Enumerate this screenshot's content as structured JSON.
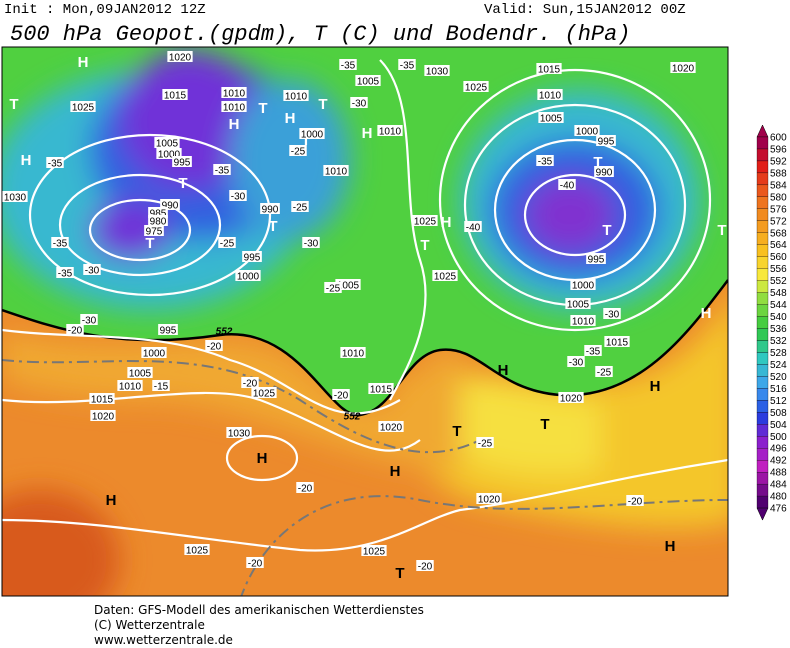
{
  "header": {
    "init": "Init : Mon,09JAN2012 12Z",
    "valid": "Valid: Sun,15JAN2012 00Z",
    "title": "500 hPa Geopot.(gpdm), T (C) und Bodendr. (hPa)"
  },
  "colorbar": {
    "labels": [
      600,
      596,
      592,
      588,
      584,
      580,
      576,
      572,
      568,
      564,
      560,
      556,
      552,
      548,
      544,
      540,
      536,
      532,
      528,
      524,
      520,
      516,
      512,
      508,
      504,
      500,
      496,
      492,
      488,
      484,
      480,
      476
    ]
  },
  "map": {
    "pressure_centers": [
      "H",
      "T",
      "H",
      "T",
      "T",
      "H",
      "T",
      "H",
      "T",
      "T",
      "H",
      "T",
      "H",
      "T",
      "T",
      "T",
      "T",
      "H",
      "H",
      "H",
      "T",
      "T",
      "H",
      "H",
      "H",
      "H",
      "T"
    ],
    "isobar_labels": [
      "1020",
      "1025",
      "1015",
      "1010",
      "1010",
      "1010",
      "1005",
      "1030",
      "1015",
      "1020",
      "1025",
      "1010",
      "1005",
      "1000",
      "995",
      "990",
      "1000",
      "1010",
      "1010",
      "1005",
      "1000",
      "995",
      "990",
      "985",
      "980",
      "975",
      "995",
      "990",
      "1030",
      "1000",
      "1005",
      "1025",
      "1025",
      "995",
      "1000",
      "1005",
      "1010",
      "1015",
      "995",
      "1000",
      "1005",
      "1010",
      "1015",
      "1020",
      "1025",
      "1010",
      "1015",
      "1020",
      "1030",
      "1020",
      "1020",
      "1025",
      "1025"
    ],
    "isotherm_labels": [
      "-35",
      "-35",
      "-30",
      "-35",
      "-35",
      "-30",
      "-25",
      "-25",
      "-30",
      "-25",
      "-35",
      "-35",
      "-30",
      "-25",
      "-40",
      "-35",
      "-40",
      "-30",
      "-35",
      "-30",
      "-25",
      "-20",
      "-30",
      "-20",
      "-15",
      "-20",
      "-20",
      "-20",
      "-25",
      "-20",
      "-20",
      "-20"
    ],
    "geopotential_labels": [
      "552",
      "552"
    ]
  },
  "footer": [
    "Daten: GFS-Modell des amerikanischen Wetterdienstes",
    "(C) Wetterzentrale",
    "www.wetterzentrale.de"
  ]
}
